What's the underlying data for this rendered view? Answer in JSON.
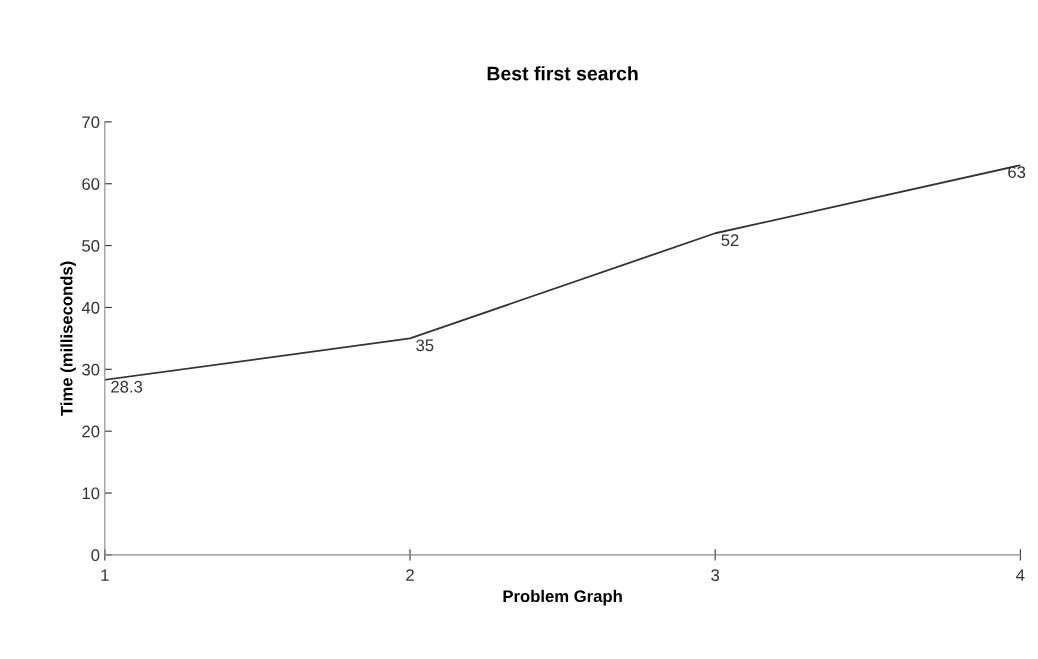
{
  "chart_data": {
    "type": "line",
    "title": "Best first search",
    "xlabel": "Problem Graph",
    "ylabel": "Time (milliseconds)",
    "x": [
      1,
      2,
      3,
      4
    ],
    "series": [
      {
        "color": "#333333",
        "values": [
          28.3,
          35,
          52,
          63
        ]
      }
    ],
    "data_labels": true,
    "xlim": [
      1,
      4
    ],
    "xticks": [
      1,
      2,
      3,
      4
    ],
    "ylim": [
      0,
      70
    ],
    "yticks": [
      0,
      10,
      20,
      30,
      40,
      50,
      60,
      70
    ],
    "grid": false,
    "legend": false,
    "marker": "none",
    "line_style": "solid"
  }
}
